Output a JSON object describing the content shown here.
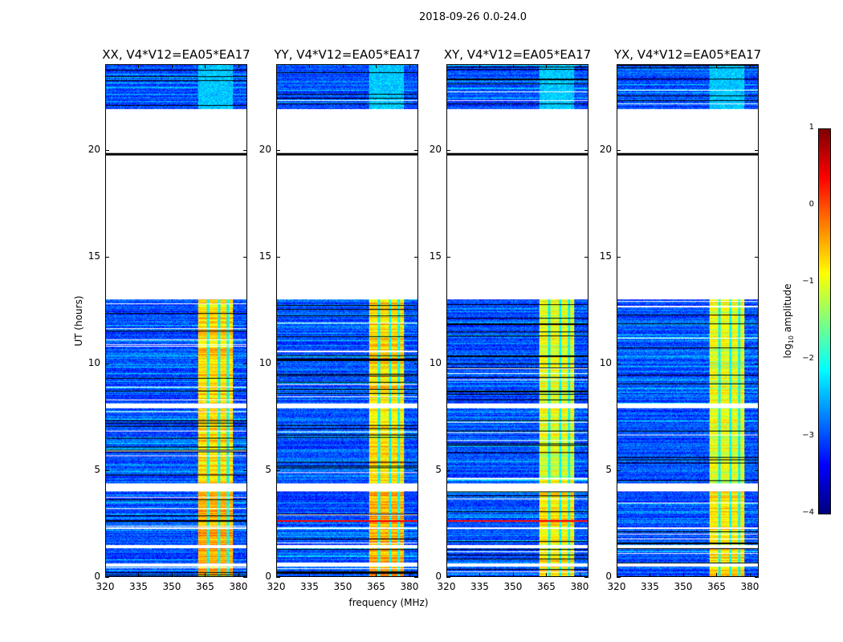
{
  "chart_data": {
    "type": "heatmap",
    "title": "2018-09-26 0.0-24.0",
    "xlabel": "frequency (MHz)",
    "ylabel": "UT (hours)",
    "xlim": [
      320,
      384
    ],
    "ylim": [
      0,
      24
    ],
    "xticks": [
      "320",
      "335",
      "350",
      "365",
      "380"
    ],
    "xtick_values": [
      320,
      335,
      350,
      365,
      380
    ],
    "yticks": [
      "0",
      "5",
      "10",
      "15",
      "20"
    ],
    "ytick_values": [
      0,
      5,
      10,
      15,
      20
    ],
    "panels": [
      {
        "title": "XX, V4*V12=EA05*EA17",
        "seed": 11
      },
      {
        "title": "YY, V4*V12=EA05*EA17",
        "seed": 23
      },
      {
        "title": "XY, V4*V12=EA05*EA17",
        "seed": 37
      },
      {
        "title": "YX, V4*V12=EA05*EA17",
        "seed": 41
      }
    ],
    "data_intervals_hours": [
      [
        0.0,
        0.45
      ],
      [
        0.6,
        1.3
      ],
      [
        1.45,
        2.2
      ],
      [
        2.3,
        4.0
      ],
      [
        4.35,
        7.9
      ],
      [
        8.1,
        13.0
      ],
      [
        21.95,
        24.0
      ]
    ],
    "flag_lines_hours": [
      19.8
    ],
    "red_line_hours": [
      2.6
    ],
    "rfi_band_mhz": [
      362,
      378
    ],
    "rfi_band_gaps_mhz": [
      366.5,
      371.5,
      375.5
    ],
    "background_log10_amplitude": -3.0,
    "rfi_log10_amplitude": -0.7,
    "colorbar": {
      "label": "log10 amplitude",
      "label_main": "log",
      "label_sub": "10",
      "label_rest": " amplitude",
      "colormap": "jet",
      "range": [
        -4,
        1
      ],
      "ticks": [
        "−4",
        "−3",
        "−2",
        "−1",
        "0",
        "1"
      ],
      "tick_values": [
        -4,
        -3,
        -2,
        -1,
        0,
        1
      ]
    }
  }
}
